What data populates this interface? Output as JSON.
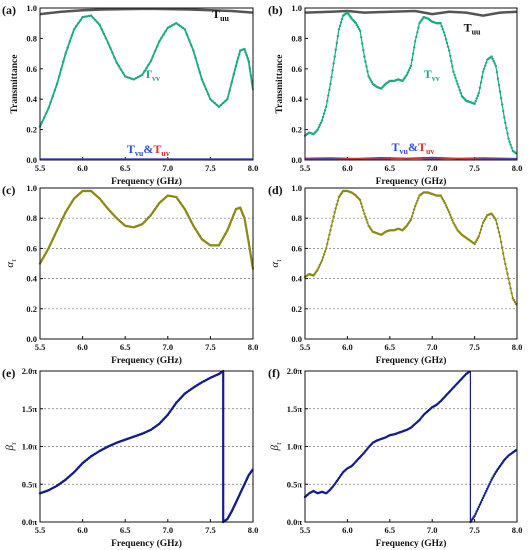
{
  "colors": {
    "tuu": "#555555",
    "tvv": "#1aaa84",
    "tvu": "#2a4fd6",
    "tuv": "#e03030",
    "alpha": "#8b8b14",
    "beta": "#141c8c"
  },
  "chart_data": [
    {
      "id": "a",
      "panel_label": "(a)",
      "type": "line",
      "xlabel": "Frequency (GHz)",
      "ylabel": "Transmittance",
      "xlim": [
        5.5,
        8.0
      ],
      "ylim": [
        0.0,
        1.0
      ],
      "xticks": [
        "5.5",
        "6.0",
        "6.5",
        "7.0",
        "7.5",
        "8.0"
      ],
      "yticks": [
        "0.0",
        "0.2",
        "0.4",
        "0.6",
        "0.8",
        "1.0"
      ],
      "grid": false,
      "ygrid_dashed": false,
      "series": [
        {
          "name": "T",
          "sub": "uu",
          "color_key": "tuu",
          "width": 2.5,
          "markers": false,
          "x": [
            5.5,
            5.75,
            6.0,
            6.25,
            6.5,
            6.75,
            7.0,
            7.25,
            7.5,
            7.75,
            8.0
          ],
          "y": [
            0.96,
            0.975,
            0.985,
            0.99,
            0.993,
            0.995,
            0.993,
            0.99,
            0.985,
            0.98,
            0.97
          ]
        },
        {
          "name": "T",
          "sub": "vv",
          "color_key": "tvv",
          "width": 1.8,
          "markers": true,
          "x": [
            5.5,
            5.6,
            5.7,
            5.8,
            5.9,
            6.0,
            6.1,
            6.2,
            6.3,
            6.4,
            6.5,
            6.6,
            6.7,
            6.8,
            6.9,
            7.0,
            7.1,
            7.2,
            7.3,
            7.4,
            7.5,
            7.6,
            7.7,
            7.8,
            7.85,
            7.9,
            7.95,
            8.0
          ],
          "y": [
            0.22,
            0.34,
            0.5,
            0.7,
            0.86,
            0.94,
            0.95,
            0.89,
            0.77,
            0.64,
            0.55,
            0.53,
            0.56,
            0.65,
            0.78,
            0.87,
            0.9,
            0.86,
            0.72,
            0.53,
            0.4,
            0.35,
            0.4,
            0.62,
            0.72,
            0.73,
            0.65,
            0.46
          ]
        },
        {
          "name": "T",
          "sub": "vu",
          "color_key": "tvu",
          "width": 2.0,
          "markers": false,
          "x": [
            5.5,
            8.0
          ],
          "y": [
            0.005,
            0.005
          ]
        },
        {
          "name": "T",
          "sub": "uv",
          "color_key": "tuv",
          "width": 1.0,
          "markers": false,
          "x": [
            5.5,
            8.0
          ],
          "y": [
            0.004,
            0.004
          ]
        }
      ],
      "annotations": [
        {
          "parts": [
            {
              "t": "T",
              "c": "#111"
            },
            {
              "t": "uu",
              "c": "#111",
              "sub": true
            }
          ],
          "x": 7.52,
          "y": 0.935
        },
        {
          "parts": [
            {
              "t": "T",
              "c": "tvv"
            },
            {
              "t": "vv",
              "c": "tvv",
              "sub": true
            }
          ],
          "x": 6.72,
          "y": 0.54
        },
        {
          "parts": [
            {
              "t": "T",
              "c": "tvu"
            },
            {
              "t": "vu",
              "c": "tvu",
              "sub": true
            },
            {
              "t": "&",
              "c": "tvu"
            },
            {
              "t": "T",
              "c": "tuv"
            },
            {
              "t": "uv",
              "c": "tuv",
              "sub": true
            }
          ],
          "x": 6.52,
          "y": 0.045
        }
      ]
    },
    {
      "id": "b",
      "panel_label": "(b)",
      "type": "line",
      "xlabel": "Frequency (GHz)",
      "ylabel": "Transmittance",
      "xlim": [
        5.5,
        8.0
      ],
      "ylim": [
        0.0,
        1.0
      ],
      "xticks": [
        "5.5",
        "6.0",
        "6.5",
        "7.0",
        "7.5",
        "8.0"
      ],
      "yticks": [
        "0.0",
        "0.2",
        "0.4",
        "0.6",
        "0.8",
        "1.0"
      ],
      "grid": false,
      "ygrid_dashed": false,
      "series": [
        {
          "name": "T",
          "sub": "uu",
          "color_key": "tuu",
          "width": 2.5,
          "markers": false,
          "x": [
            5.5,
            5.8,
            6.0,
            6.2,
            6.5,
            6.8,
            7.0,
            7.2,
            7.4,
            7.6,
            7.8,
            8.0
          ],
          "y": [
            0.97,
            0.975,
            0.98,
            0.97,
            0.975,
            0.98,
            0.96,
            0.975,
            0.97,
            0.95,
            0.97,
            0.975
          ]
        },
        {
          "name": "T",
          "sub": "vv",
          "color_key": "tvv",
          "width": 1.2,
          "markers": true,
          "x": [
            5.5,
            5.55,
            5.6,
            5.65,
            5.7,
            5.75,
            5.8,
            5.85,
            5.9,
            5.95,
            6.0,
            6.05,
            6.1,
            6.15,
            6.2,
            6.25,
            6.3,
            6.35,
            6.4,
            6.45,
            6.5,
            6.55,
            6.6,
            6.65,
            6.7,
            6.75,
            6.8,
            6.85,
            6.9,
            6.95,
            7.0,
            7.05,
            7.1,
            7.15,
            7.2,
            7.25,
            7.3,
            7.35,
            7.4,
            7.45,
            7.5,
            7.55,
            7.6,
            7.65,
            7.7,
            7.75,
            7.8,
            7.85,
            7.9,
            7.95,
            8.0
          ],
          "y": [
            0.16,
            0.18,
            0.17,
            0.2,
            0.26,
            0.35,
            0.5,
            0.68,
            0.86,
            0.95,
            0.97,
            0.93,
            0.9,
            0.85,
            0.68,
            0.55,
            0.5,
            0.48,
            0.47,
            0.5,
            0.52,
            0.52,
            0.53,
            0.52,
            0.56,
            0.62,
            0.78,
            0.9,
            0.94,
            0.93,
            0.91,
            0.9,
            0.9,
            0.82,
            0.72,
            0.58,
            0.5,
            0.42,
            0.39,
            0.38,
            0.37,
            0.44,
            0.58,
            0.66,
            0.68,
            0.62,
            0.45,
            0.28,
            0.14,
            0.06,
            0.04
          ]
        },
        {
          "name": "T",
          "sub": "vu",
          "color_key": "tvu",
          "width": 1.8,
          "markers": false,
          "x": [
            5.5,
            5.8,
            6.1,
            6.4,
            6.7,
            7.0,
            7.3,
            7.6,
            8.0
          ],
          "y": [
            0.01,
            0.012,
            0.008,
            0.014,
            0.01,
            0.015,
            0.009,
            0.012,
            0.008
          ]
        },
        {
          "name": "T",
          "sub": "uv",
          "color_key": "tuv",
          "width": 1.2,
          "markers": false,
          "x": [
            5.5,
            5.8,
            6.1,
            6.4,
            6.7,
            7.0,
            7.3,
            7.6,
            8.0
          ],
          "y": [
            0.006,
            0.004,
            0.01,
            0.006,
            0.012,
            0.005,
            0.011,
            0.006,
            0.004
          ]
        }
      ],
      "annotations": [
        {
          "parts": [
            {
              "t": "T",
              "c": "#111"
            },
            {
              "t": "uu",
              "c": "#111",
              "sub": true
            }
          ],
          "x": 7.37,
          "y": 0.845
        },
        {
          "parts": [
            {
              "t": "T",
              "c": "tvv"
            },
            {
              "t": "vv",
              "c": "tvv",
              "sub": true
            }
          ],
          "x": 6.9,
          "y": 0.54
        },
        {
          "parts": [
            {
              "t": "T",
              "c": "tvu"
            },
            {
              "t": "vu",
              "c": "tvu",
              "sub": true
            },
            {
              "t": "&",
              "c": "tvu"
            },
            {
              "t": "T",
              "c": "tuv"
            },
            {
              "t": "uv",
              "c": "tuv",
              "sub": true
            }
          ],
          "x": 6.52,
          "y": 0.06
        }
      ]
    },
    {
      "id": "c",
      "panel_label": "(c)",
      "type": "line",
      "xlabel": "Frequency (GHz)",
      "ylabel": "α",
      "ylabel_sub": "τ",
      "xlim": [
        5.5,
        8.0
      ],
      "ylim": [
        0.0,
        1.0
      ],
      "xticks": [
        "5.5",
        "6.0",
        "6.5",
        "7.0",
        "7.5",
        "8.0"
      ],
      "yticks": [
        "0.0",
        "0.2",
        "0.4",
        "0.6",
        "0.8",
        "1.0"
      ],
      "ygrid_dashed": true,
      "series": [
        {
          "name": "α",
          "color_key": "alpha",
          "width": 2.2,
          "markers": true,
          "x": [
            5.5,
            5.6,
            5.7,
            5.8,
            5.9,
            6.0,
            6.1,
            6.2,
            6.3,
            6.4,
            6.5,
            6.6,
            6.7,
            6.8,
            6.9,
            7.0,
            7.1,
            7.2,
            7.3,
            7.4,
            7.5,
            7.6,
            7.7,
            7.8,
            7.85,
            7.9,
            7.95,
            8.0
          ],
          "y": [
            0.5,
            0.6,
            0.72,
            0.84,
            0.93,
            0.98,
            0.98,
            0.93,
            0.86,
            0.8,
            0.75,
            0.74,
            0.76,
            0.82,
            0.9,
            0.95,
            0.94,
            0.86,
            0.75,
            0.66,
            0.62,
            0.62,
            0.72,
            0.86,
            0.87,
            0.8,
            0.64,
            0.46
          ]
        }
      ]
    },
    {
      "id": "d",
      "panel_label": "(d)",
      "type": "line",
      "xlabel": "Frequency (GHz)",
      "ylabel": "α",
      "ylabel_sub": "τ",
      "xlim": [
        5.5,
        8.0
      ],
      "ylim": [
        0.0,
        1.0
      ],
      "xticks": [
        "5.5",
        "6.0",
        "6.5",
        "7.0",
        "7.5",
        "8.0"
      ],
      "yticks": [
        "0.0",
        "0.2",
        "0.4",
        "0.6",
        "0.8",
        "1.0"
      ],
      "ygrid_dashed": true,
      "series": [
        {
          "name": "α",
          "color_key": "alpha",
          "width": 1.2,
          "markers": true,
          "x": [
            5.5,
            5.55,
            5.6,
            5.65,
            5.7,
            5.75,
            5.8,
            5.85,
            5.9,
            5.95,
            6.0,
            6.05,
            6.1,
            6.15,
            6.2,
            6.25,
            6.3,
            6.35,
            6.4,
            6.45,
            6.5,
            6.55,
            6.6,
            6.65,
            6.7,
            6.75,
            6.8,
            6.85,
            6.9,
            6.95,
            7.0,
            7.05,
            7.1,
            7.15,
            7.2,
            7.25,
            7.3,
            7.35,
            7.4,
            7.45,
            7.5,
            7.55,
            7.6,
            7.65,
            7.7,
            7.75,
            7.8,
            7.85,
            7.9,
            7.95,
            8.0
          ],
          "y": [
            0.41,
            0.43,
            0.42,
            0.46,
            0.52,
            0.6,
            0.72,
            0.84,
            0.94,
            0.98,
            0.98,
            0.97,
            0.95,
            0.92,
            0.83,
            0.75,
            0.71,
            0.7,
            0.69,
            0.71,
            0.72,
            0.72,
            0.73,
            0.72,
            0.75,
            0.79,
            0.88,
            0.95,
            0.97,
            0.97,
            0.96,
            0.95,
            0.95,
            0.9,
            0.84,
            0.77,
            0.72,
            0.69,
            0.67,
            0.65,
            0.63,
            0.68,
            0.77,
            0.82,
            0.83,
            0.79,
            0.68,
            0.53,
            0.4,
            0.27,
            0.22
          ]
        }
      ]
    },
    {
      "id": "e",
      "panel_label": "(e)",
      "type": "line",
      "xlabel": "Frequency (GHz)",
      "ylabel": "β",
      "ylabel_sub": "τ",
      "xlim": [
        5.5,
        8.0
      ],
      "ylim": [
        0.0,
        2.0
      ],
      "xticks": [
        "5.5",
        "6.0",
        "6.5",
        "7.0",
        "7.5",
        "8.0"
      ],
      "yticks": [
        "0.0π",
        "0.5π",
        "1.0π",
        "1.5π",
        "2.0π"
      ],
      "ygrid_dashed": true,
      "series": [
        {
          "name": "β",
          "color_key": "beta",
          "width": 2.2,
          "markers": true,
          "x": [
            5.5,
            5.6,
            5.7,
            5.8,
            5.9,
            6.0,
            6.1,
            6.2,
            6.3,
            6.4,
            6.5,
            6.6,
            6.7,
            6.8,
            6.9,
            7.0,
            7.1,
            7.2,
            7.3,
            7.4,
            7.5,
            7.6,
            7.65,
            7.65,
            7.7,
            7.75,
            7.8,
            7.85,
            7.9,
            7.95,
            8.0
          ],
          "y": [
            0.38,
            0.42,
            0.48,
            0.56,
            0.66,
            0.78,
            0.87,
            0.94,
            1.0,
            1.05,
            1.09,
            1.13,
            1.17,
            1.22,
            1.3,
            1.42,
            1.58,
            1.7,
            1.78,
            1.85,
            1.91,
            1.96,
            2.0,
            0.0,
            0.04,
            0.14,
            0.26,
            0.38,
            0.5,
            0.62,
            0.7
          ]
        }
      ]
    },
    {
      "id": "f",
      "panel_label": "(f)",
      "type": "line",
      "xlabel": "Frequency (GHz)",
      "ylabel": "β",
      "ylabel_sub": "τ",
      "xlim": [
        5.5,
        8.0
      ],
      "ylim": [
        0.0,
        2.0
      ],
      "xticks": [
        "5.5",
        "6.0",
        "6.5",
        "7.0",
        "7.5",
        "8.0"
      ],
      "yticks": [
        "0.0π",
        "0.5π",
        "1.0π",
        "1.5π",
        "2.0π"
      ],
      "ygrid_dashed": true,
      "series": [
        {
          "name": "β",
          "color_key": "beta",
          "width": 1.2,
          "markers": true,
          "x": [
            5.5,
            5.55,
            5.6,
            5.65,
            5.7,
            5.75,
            5.8,
            5.85,
            5.9,
            5.95,
            6.0,
            6.05,
            6.1,
            6.15,
            6.2,
            6.25,
            6.3,
            6.35,
            6.4,
            6.45,
            6.5,
            6.55,
            6.6,
            6.65,
            6.7,
            6.75,
            6.8,
            6.85,
            6.9,
            6.95,
            7.0,
            7.05,
            7.1,
            7.15,
            7.2,
            7.25,
            7.3,
            7.35,
            7.4,
            7.45,
            7.45,
            7.5,
            7.55,
            7.6,
            7.65,
            7.7,
            7.75,
            7.8,
            7.85,
            7.9,
            7.95,
            8.0
          ],
          "y": [
            0.33,
            0.38,
            0.41,
            0.38,
            0.4,
            0.38,
            0.43,
            0.5,
            0.58,
            0.66,
            0.71,
            0.74,
            0.8,
            0.86,
            0.92,
            0.99,
            1.05,
            1.08,
            1.1,
            1.12,
            1.15,
            1.16,
            1.18,
            1.2,
            1.22,
            1.25,
            1.3,
            1.35,
            1.42,
            1.47,
            1.52,
            1.55,
            1.6,
            1.66,
            1.72,
            1.78,
            1.84,
            1.9,
            1.96,
            2.0,
            0.0,
            0.08,
            0.2,
            0.32,
            0.44,
            0.56,
            0.66,
            0.74,
            0.82,
            0.88,
            0.92,
            0.96
          ]
        }
      ]
    }
  ]
}
